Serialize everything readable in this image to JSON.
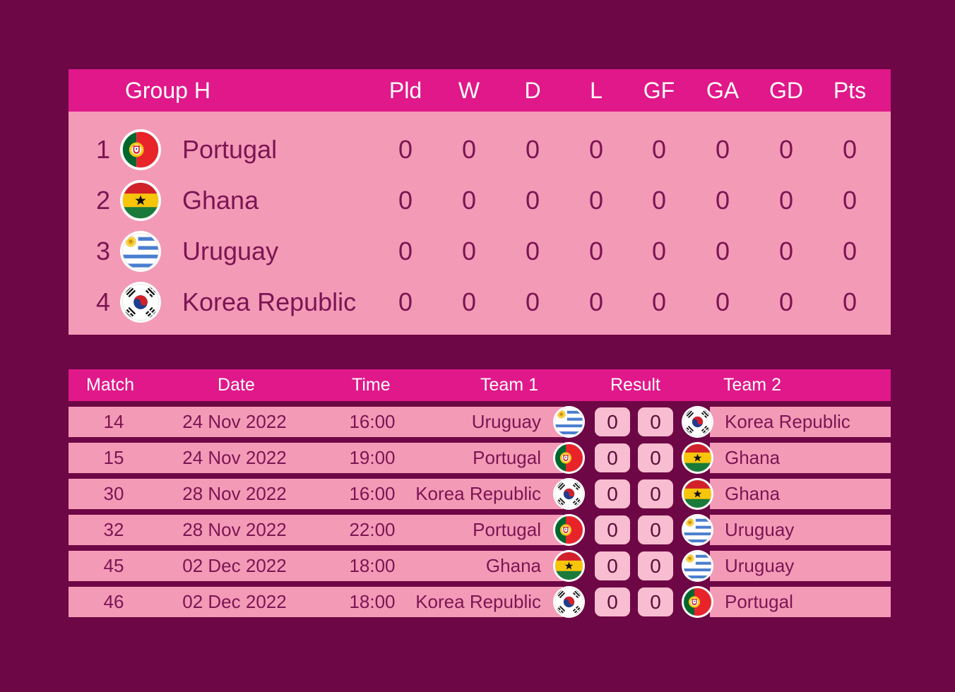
{
  "standings": {
    "group": "Group H",
    "columns": [
      "Pld",
      "W",
      "D",
      "L",
      "GF",
      "GA",
      "GD",
      "Pts"
    ],
    "rows": [
      {
        "rank": "1",
        "team": "Portugal",
        "flag": "portugal-flag-icon",
        "values": [
          "0",
          "0",
          "0",
          "0",
          "0",
          "0",
          "0",
          "0"
        ]
      },
      {
        "rank": "2",
        "team": "Ghana",
        "flag": "ghana-flag-icon",
        "values": [
          "0",
          "0",
          "0",
          "0",
          "0",
          "0",
          "0",
          "0"
        ]
      },
      {
        "rank": "3",
        "team": "Uruguay",
        "flag": "uruguay-flag-icon",
        "values": [
          "0",
          "0",
          "0",
          "0",
          "0",
          "0",
          "0",
          "0"
        ]
      },
      {
        "rank": "4",
        "team": "Korea Republic",
        "flag": "korea-flag-icon",
        "values": [
          "0",
          "0",
          "0",
          "0",
          "0",
          "0",
          "0",
          "0"
        ]
      }
    ]
  },
  "fixtures": {
    "headers": {
      "match": "Match",
      "date": "Date",
      "time": "Time",
      "team1": "Team 1",
      "result": "Result",
      "team2": "Team 2"
    },
    "rows": [
      {
        "match": "14",
        "date": "24 Nov 2022",
        "time": "16:00",
        "team1": "Uruguay",
        "team1_flag": "uruguay-flag-icon",
        "score1": "0",
        "score2": "0",
        "team2": "Korea Republic",
        "team2_flag": "korea-flag-icon"
      },
      {
        "match": "15",
        "date": "24 Nov 2022",
        "time": "19:00",
        "team1": "Portugal",
        "team1_flag": "portugal-flag-icon",
        "score1": "0",
        "score2": "0",
        "team2": "Ghana",
        "team2_flag": "ghana-flag-icon"
      },
      {
        "match": "30",
        "date": "28 Nov 2022",
        "time": "16:00",
        "team1": "Korea Republic",
        "team1_flag": "korea-flag-icon",
        "score1": "0",
        "score2": "0",
        "team2": "Ghana",
        "team2_flag": "ghana-flag-icon"
      },
      {
        "match": "32",
        "date": "28 Nov 2022",
        "time": "22:00",
        "team1": "Portugal",
        "team1_flag": "portugal-flag-icon",
        "score1": "0",
        "score2": "0",
        "team2": "Uruguay",
        "team2_flag": "uruguay-flag-icon"
      },
      {
        "match": "45",
        "date": "02 Dec 2022",
        "time": "18:00",
        "team1": "Ghana",
        "team1_flag": "ghana-flag-icon",
        "score1": "0",
        "score2": "0",
        "team2": "Uruguay",
        "team2_flag": "uruguay-flag-icon"
      },
      {
        "match": "46",
        "date": "02 Dec 2022",
        "time": "18:00",
        "team1": "Korea Republic",
        "team1_flag": "korea-flag-icon",
        "score1": "0",
        "score2": "0",
        "team2": "Portugal",
        "team2_flag": "portugal-flag-icon"
      }
    ]
  },
  "colors": {
    "background": "#6e0745",
    "header": "#e0188a",
    "row": "#f39ab7",
    "text": "#7b1553"
  }
}
